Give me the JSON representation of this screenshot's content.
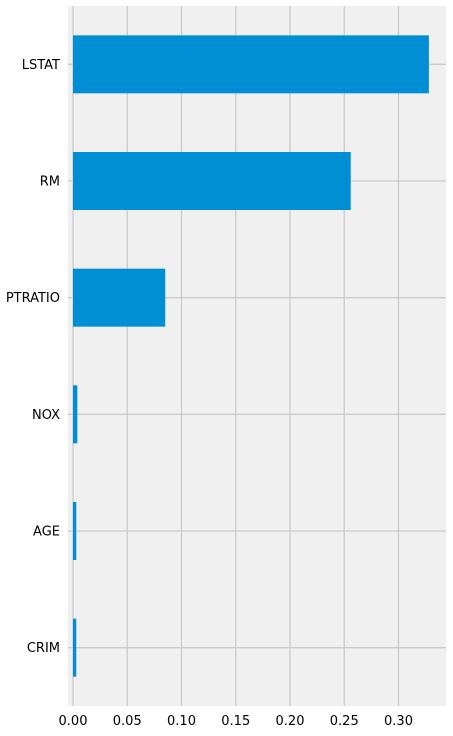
{
  "chart_data": {
    "type": "bar",
    "orientation": "horizontal",
    "categories": [
      "LSTAT",
      "RM",
      "PTRATIO",
      "NOX",
      "AGE",
      "CRIM"
    ],
    "values": [
      0.328,
      0.256,
      0.085,
      0.004,
      0.003,
      0.003
    ],
    "title": "",
    "xlabel": "",
    "ylabel": "",
    "xlim": [
      0.0,
      0.345
    ],
    "xticks": [
      "0.00",
      "0.05",
      "0.10",
      "0.15",
      "0.20",
      "0.25",
      "0.30"
    ],
    "grid": true,
    "colors": {
      "bar": "#008fd5",
      "plot_background": "#f0f0f0",
      "grid": "#cbcbcb",
      "figure_background": "#ffffff"
    }
  }
}
